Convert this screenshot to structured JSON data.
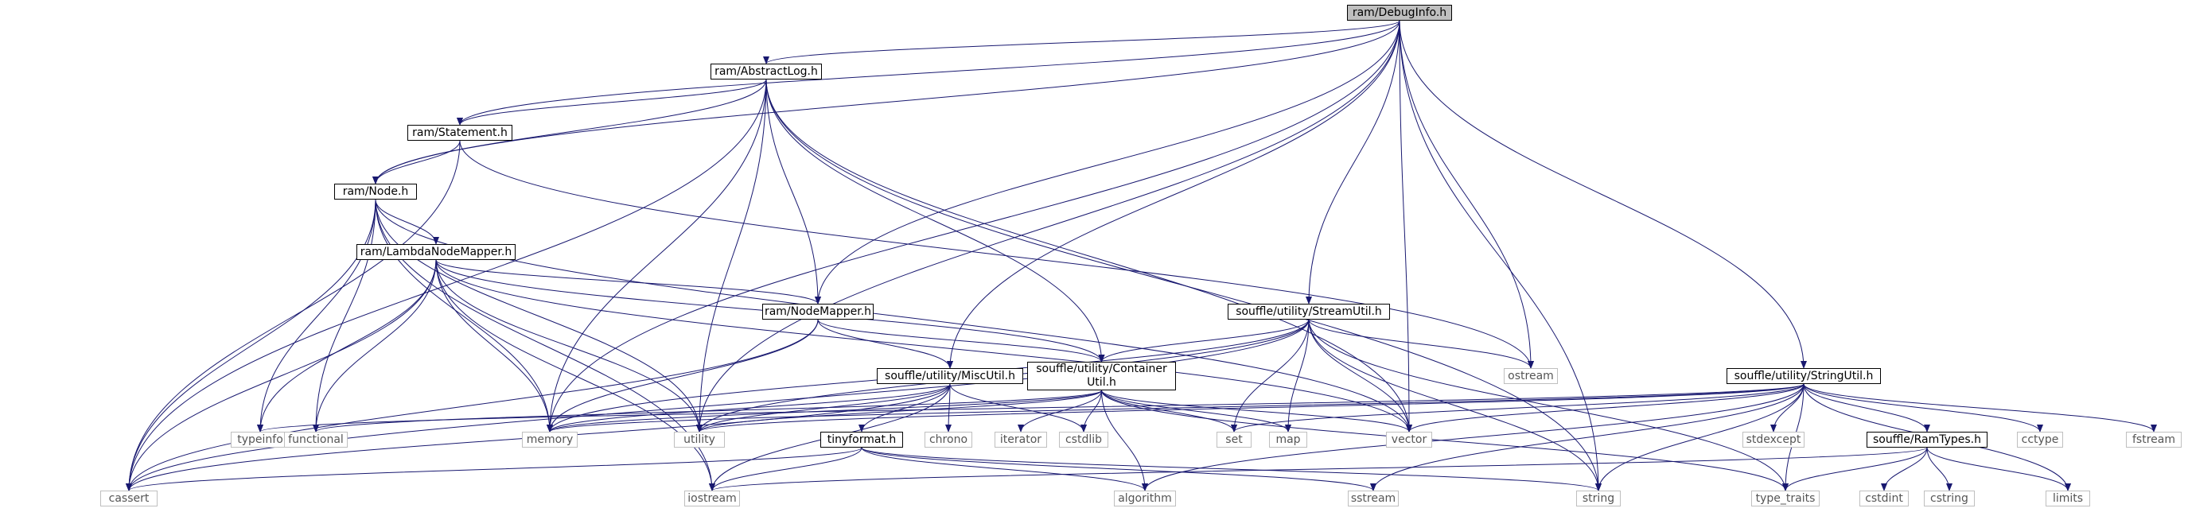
{
  "title": "ram/DebugInfo.h",
  "colors": {
    "edge": "#191970",
    "box": "#000000",
    "root_fill": "#bfbfbf",
    "external": "#bfbfbf"
  },
  "nodes": {
    "root": "ram/DebugInfo.h",
    "abstractlog": "ram/AbstractLog.h",
    "statement": "ram/Statement.h",
    "node": "ram/Node.h",
    "lambdanodemapper": "ram/LambdaNodeMapper.h",
    "nodemapper": "ram/NodeMapper.h",
    "streamutil": "souffle/utility/StreamUtil.h",
    "containerutil": "souffle/utility/Container\nUtil.h",
    "miscutil": "souffle/utility/MiscUtil.h",
    "tinyformat": "tinyformat.h",
    "stringutil": "souffle/utility/StringUtil.h",
    "ramtypes": "souffle/RamTypes.h",
    "typeinfo": "typeinfo",
    "functional": "functional",
    "memory": "memory",
    "utility": "utility",
    "chrono": "chrono",
    "iterator": "iterator",
    "cstdlib": "cstdlib",
    "set": "set",
    "map": "map",
    "vector": "vector",
    "ostream": "ostream",
    "cassert": "cassert",
    "iostream": "iostream",
    "algorithm": "algorithm",
    "sstream": "sstream",
    "string": "string",
    "type_traits": "type_traits",
    "stdexcept": "stdexcept",
    "cctype": "cctype",
    "fstream": "fstream",
    "cstdint": "cstdint",
    "cstring": "cstring",
    "limits": "limits"
  },
  "edges": [
    [
      "root",
      "abstractlog"
    ],
    [
      "root",
      "statement"
    ],
    [
      "root",
      "node"
    ],
    [
      "root",
      "memory"
    ],
    [
      "root",
      "nodemapper"
    ],
    [
      "root",
      "utility"
    ],
    [
      "root",
      "miscutil"
    ],
    [
      "root",
      "streamutil"
    ],
    [
      "root",
      "ostream"
    ],
    [
      "root",
      "vector"
    ],
    [
      "root",
      "string"
    ],
    [
      "root",
      "stringutil"
    ],
    [
      "abstractlog",
      "statement"
    ],
    [
      "abstractlog",
      "node"
    ],
    [
      "abstractlog",
      "cassert"
    ],
    [
      "abstractlog",
      "memory"
    ],
    [
      "abstractlog",
      "utility"
    ],
    [
      "abstractlog",
      "nodemapper"
    ],
    [
      "abstractlog",
      "containerutil"
    ],
    [
      "abstractlog",
      "vector"
    ],
    [
      "abstractlog",
      "string"
    ],
    [
      "statement",
      "node"
    ],
    [
      "statement",
      "cassert"
    ],
    [
      "statement",
      "ostream"
    ],
    [
      "node",
      "lambdanodemapper"
    ],
    [
      "node",
      "typeinfo"
    ],
    [
      "node",
      "functional"
    ],
    [
      "node",
      "memory"
    ],
    [
      "node",
      "utility"
    ],
    [
      "node",
      "cassert"
    ],
    [
      "node",
      "iostream"
    ],
    [
      "node",
      "vector"
    ],
    [
      "lambdanodemapper",
      "nodemapper"
    ],
    [
      "lambdanodemapper",
      "containerutil"
    ],
    [
      "lambdanodemapper",
      "typeinfo"
    ],
    [
      "lambdanodemapper",
      "functional"
    ],
    [
      "lambdanodemapper",
      "memory"
    ],
    [
      "lambdanodemapper",
      "utility"
    ],
    [
      "lambdanodemapper",
      "cassert"
    ],
    [
      "lambdanodemapper",
      "iostream"
    ],
    [
      "lambdanodemapper",
      "vector"
    ],
    [
      "nodemapper",
      "miscutil"
    ],
    [
      "nodemapper",
      "containerutil"
    ],
    [
      "nodemapper",
      "memory"
    ],
    [
      "nodemapper",
      "cassert"
    ],
    [
      "streamutil",
      "containerutil"
    ],
    [
      "streamutil",
      "memory"
    ],
    [
      "streamutil",
      "utility"
    ],
    [
      "streamutil",
      "ostream"
    ],
    [
      "streamutil",
      "set"
    ],
    [
      "streamutil",
      "map"
    ],
    [
      "streamutil",
      "vector"
    ],
    [
      "streamutil",
      "string"
    ],
    [
      "streamutil",
      "type_traits"
    ],
    [
      "streamutil",
      "cassert"
    ],
    [
      "containerutil",
      "functional"
    ],
    [
      "containerutil",
      "memory"
    ],
    [
      "containerutil",
      "utility"
    ],
    [
      "containerutil",
      "iterator"
    ],
    [
      "containerutil",
      "cstdlib"
    ],
    [
      "containerutil",
      "set"
    ],
    [
      "containerutil",
      "map"
    ],
    [
      "containerutil",
      "vector"
    ],
    [
      "containerutil",
      "algorithm"
    ],
    [
      "containerutil",
      "type_traits"
    ],
    [
      "miscutil",
      "tinyformat"
    ],
    [
      "miscutil",
      "chrono"
    ],
    [
      "miscutil",
      "cstdlib"
    ],
    [
      "miscutil",
      "memory"
    ],
    [
      "miscutil",
      "utility"
    ],
    [
      "miscutil",
      "iostream"
    ],
    [
      "miscutil",
      "cassert"
    ],
    [
      "tinyformat",
      "cassert"
    ],
    [
      "tinyformat",
      "iostream"
    ],
    [
      "tinyformat",
      "algorithm"
    ],
    [
      "tinyformat",
      "sstream"
    ],
    [
      "tinyformat",
      "string"
    ],
    [
      "stringutil",
      "ramtypes"
    ],
    [
      "stringutil",
      "typeinfo"
    ],
    [
      "stringutil",
      "memory"
    ],
    [
      "stringutil",
      "set"
    ],
    [
      "stringutil",
      "vector"
    ],
    [
      "stringutil",
      "algorithm"
    ],
    [
      "stringutil",
      "sstream"
    ],
    [
      "stringutil",
      "string"
    ],
    [
      "stringutil",
      "type_traits"
    ],
    [
      "stringutil",
      "stdexcept"
    ],
    [
      "stringutil",
      "cctype"
    ],
    [
      "stringutil",
      "fstream"
    ],
    [
      "stringutil",
      "limits"
    ],
    [
      "stringutil",
      "utility"
    ],
    [
      "ramtypes",
      "cstdint"
    ],
    [
      "ramtypes",
      "cstring"
    ],
    [
      "ramtypes",
      "limits"
    ],
    [
      "ramtypes",
      "type_traits"
    ],
    [
      "ramtypes",
      "iostream"
    ]
  ]
}
